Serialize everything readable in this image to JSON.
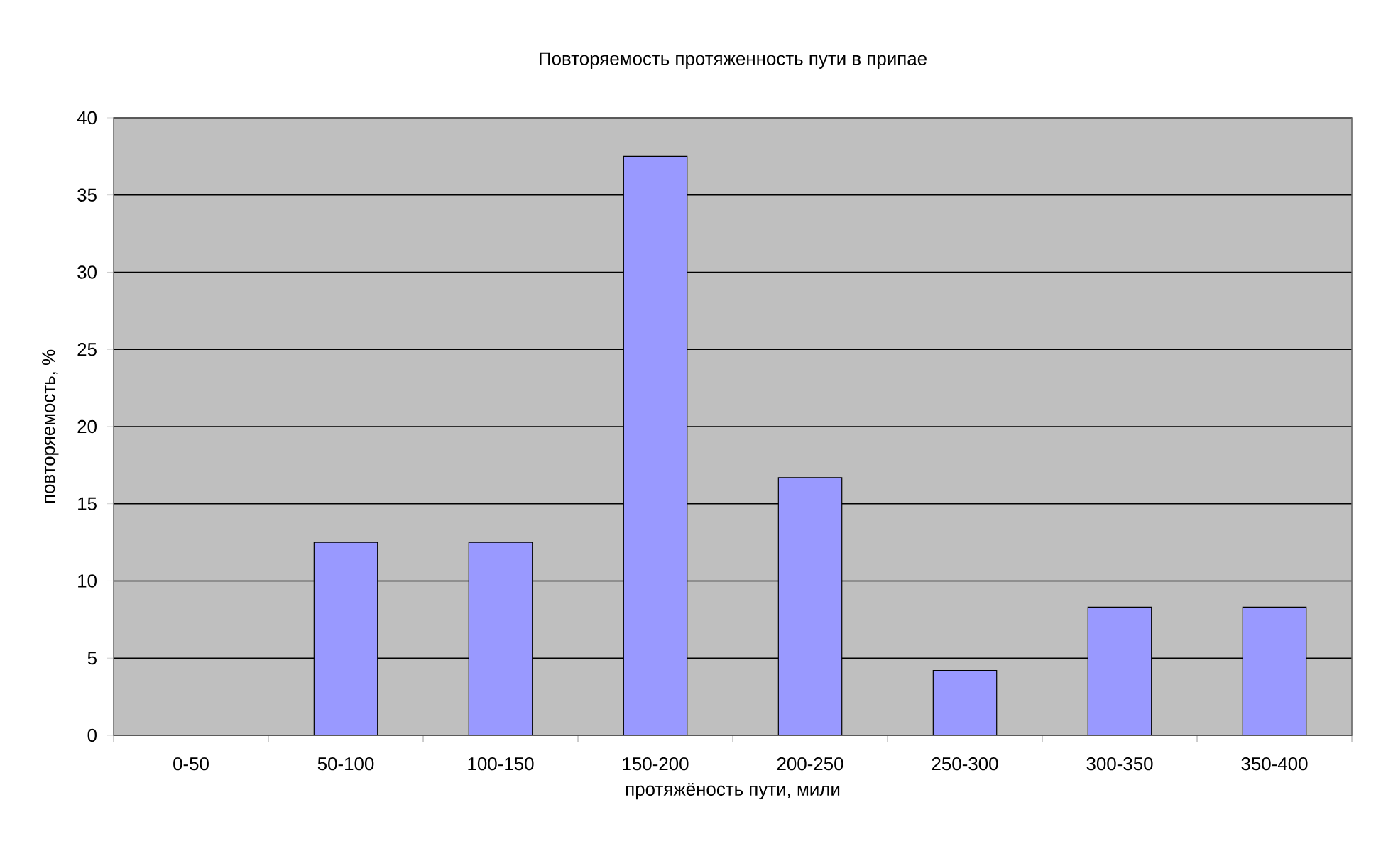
{
  "chart_data": {
    "type": "bar",
    "title": "Повторяемость протяженность пути в припае",
    "xlabel": "протяжёность пути, мили",
    "ylabel": "повторяемость, %",
    "categories": [
      "0-50",
      "50-100",
      "100-150",
      "150-200",
      "200-250",
      "250-300",
      "300-350",
      "350-400"
    ],
    "values": [
      0,
      12.5,
      12.5,
      37.5,
      16.7,
      4.2,
      8.3,
      8.3
    ],
    "color": "#9999ff",
    "ylim": [
      0,
      40
    ],
    "yticks": [
      0,
      5,
      10,
      15,
      20,
      25,
      30,
      35,
      40
    ],
    "grid": "y"
  }
}
